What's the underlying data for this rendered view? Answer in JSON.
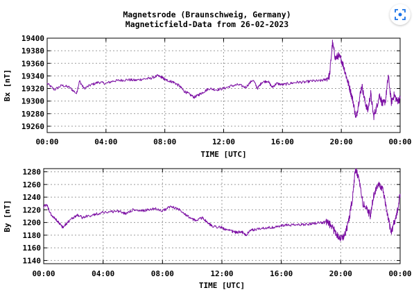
{
  "chart_title": {
    "line1": "Magnetsrode (Braunschweig, Germany)",
    "line2": "Magneticfield-Data from 26-02-2023"
  },
  "colors": {
    "series": "#7b0ea3",
    "grid": "#9a9a9a",
    "axis": "#000000",
    "icon": "#1a73e8"
  },
  "chart_data": [
    {
      "type": "line",
      "ylabel": "Bx [nT]",
      "xlabel": "TIME [UTC]",
      "xticks": [
        "00:00",
        "04:00",
        "08:00",
        "12:00",
        "16:00",
        "20:00",
        "00:00"
      ],
      "xlim_hours": [
        0,
        24
      ],
      "ylim": [
        19250,
        19400
      ],
      "yticks": [
        19260,
        19280,
        19300,
        19320,
        19340,
        19360,
        19380,
        19400
      ],
      "grid": true,
      "series": [
        {
          "x_hours": [
            0,
            0.5,
            1,
            1.5,
            2,
            2.2,
            2.5,
            3,
            3.5,
            4,
            4.5,
            5,
            5.5,
            6,
            6.5,
            7,
            7.5,
            7.8,
            8,
            8.3,
            8.6,
            9,
            9.3,
            9.6,
            10,
            10.3,
            10.6,
            11,
            11.5,
            12,
            12.5,
            13,
            13.5,
            14,
            14.3,
            14.6,
            15,
            15.3,
            15.6,
            16,
            16.5,
            17,
            17.5,
            18,
            18.5,
            18.9,
            19.2,
            19.4,
            19.6,
            19.8,
            20,
            20.2,
            20.4,
            20.6,
            20.8,
            21,
            21.2,
            21.4,
            21.6,
            21.8,
            22,
            22.2,
            22.4,
            22.6,
            22.8,
            23,
            23.2,
            23.4,
            23.6,
            23.8,
            24
          ],
          "y": [
            19328,
            19318,
            19325,
            19322,
            19312,
            19332,
            19320,
            19326,
            19330,
            19328,
            19332,
            19333,
            19334,
            19333,
            19335,
            19336,
            19340,
            19338,
            19334,
            19332,
            19330,
            19324,
            19316,
            19312,
            19306,
            19310,
            19314,
            19320,
            19318,
            19320,
            19324,
            19326,
            19322,
            19334,
            19320,
            19330,
            19332,
            19322,
            19328,
            19326,
            19328,
            19330,
            19330,
            19332,
            19332,
            19334,
            19340,
            19392,
            19368,
            19372,
            19366,
            19352,
            19334,
            19318,
            19300,
            19272,
            19300,
            19325,
            19300,
            19285,
            19312,
            19275,
            19290,
            19310,
            19295,
            19300,
            19340,
            19298,
            19310,
            19300,
            19304
          ]
        }
      ]
    },
    {
      "type": "line",
      "ylabel": "By [nT]",
      "xlabel": "TIME [UTC]",
      "xticks": [
        "00:00",
        "04:00",
        "08:00",
        "12:00",
        "16:00",
        "20:00",
        "00:00"
      ],
      "xlim_hours": [
        0,
        24
      ],
      "ylim": [
        1135,
        1285
      ],
      "yticks": [
        1140,
        1160,
        1180,
        1200,
        1220,
        1240,
        1260,
        1280
      ],
      "grid": true,
      "series": [
        {
          "x_hours": [
            0,
            0.2,
            0.5,
            0.8,
            1,
            1.3,
            1.6,
            2,
            2.3,
            2.6,
            3,
            3.5,
            4,
            4.5,
            5,
            5.5,
            6,
            6.5,
            7,
            7.5,
            8,
            8.5,
            9,
            9.3,
            9.6,
            10,
            10.3,
            10.7,
            11,
            11.3,
            11.7,
            12,
            12.3,
            12.7,
            13,
            13.3,
            13.6,
            14,
            14.5,
            15,
            15.5,
            16,
            16.5,
            17,
            17.5,
            18,
            18.5,
            19,
            19.3,
            19.6,
            19.8,
            20,
            20.2,
            20.4,
            20.6,
            20.8,
            21,
            21.2,
            21.5,
            21.8,
            22,
            22.2,
            22.5,
            22.8,
            23,
            23.2,
            23.4,
            23.6,
            23.8,
            24
          ],
          "y": [
            1225,
            1228,
            1212,
            1205,
            1200,
            1192,
            1200,
            1208,
            1212,
            1208,
            1210,
            1213,
            1216,
            1217,
            1218,
            1214,
            1220,
            1218,
            1220,
            1222,
            1218,
            1225,
            1222,
            1218,
            1212,
            1205,
            1203,
            1208,
            1200,
            1195,
            1193,
            1192,
            1188,
            1186,
            1184,
            1186,
            1180,
            1188,
            1190,
            1192,
            1192,
            1195,
            1196,
            1196,
            1197,
            1198,
            1200,
            1200,
            1196,
            1186,
            1180,
            1175,
            1178,
            1190,
            1210,
            1240,
            1285,
            1270,
            1230,
            1220,
            1210,
            1240,
            1262,
            1255,
            1230,
            1205,
            1185,
            1200,
            1215,
            1245
          ]
        }
      ]
    }
  ]
}
